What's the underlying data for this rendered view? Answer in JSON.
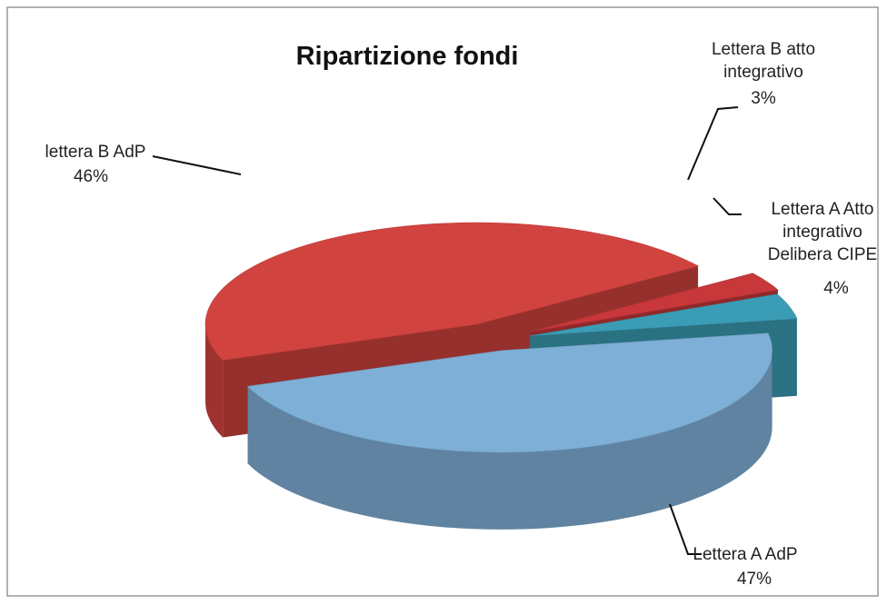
{
  "chart_data": {
    "type": "pie",
    "title": "Ripartizione fondi",
    "categories": [
      "Lettera B atto integrativo",
      "Lettera A Atto integrativo Delibera CIPE",
      "Lettera A AdP",
      "lettera B AdP"
    ],
    "values": [
      3,
      4,
      47,
      46
    ],
    "value_labels": [
      "3%",
      "4%",
      "47%",
      "46%"
    ],
    "colors": [
      "#c8383a",
      "#3a9db5",
      "#7eafd6",
      "#d1433f"
    ]
  }
}
